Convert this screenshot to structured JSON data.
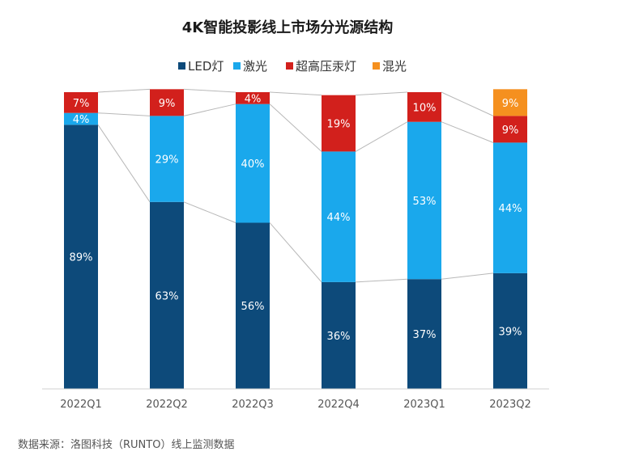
{
  "chart_data": {
    "type": "bar",
    "stacked": true,
    "title": "4K智能投影线上市场分光源结构",
    "categories": [
      "2022Q1",
      "2022Q2",
      "2022Q3",
      "2022Q4",
      "2023Q1",
      "2023Q2"
    ],
    "series": [
      {
        "name": "LED灯",
        "color": "#0d4a7a",
        "values": [
          89,
          63,
          56,
          36,
          37,
          39
        ],
        "labels": [
          "89%",
          "63%",
          "56%",
          "36%",
          "37%",
          "39%"
        ]
      },
      {
        "name": "激光",
        "color": "#1aa8ec",
        "values": [
          4,
          29,
          40,
          44,
          53,
          44
        ],
        "labels": [
          "4%",
          "29%",
          "40%",
          "44%",
          "53%",
          "44%"
        ]
      },
      {
        "name": "超高压汞灯",
        "color": "#d2201c",
        "values": [
          7,
          9,
          4,
          19,
          10,
          9
        ],
        "labels": [
          "7%",
          "9%",
          "4%",
          "19%",
          "10%",
          "9%"
        ]
      },
      {
        "name": "混光",
        "color": "#f5901f",
        "values": [
          0,
          0,
          0,
          0,
          0,
          9
        ],
        "labels": [
          "",
          "",
          "",
          "",
          "",
          "9%"
        ]
      }
    ],
    "ylim": [
      0,
      100
    ],
    "legend_position": "top",
    "series_connector_lines": true,
    "grid": false,
    "source_note": "数据来源：洛图科技（RUNTO）线上监测数据"
  }
}
